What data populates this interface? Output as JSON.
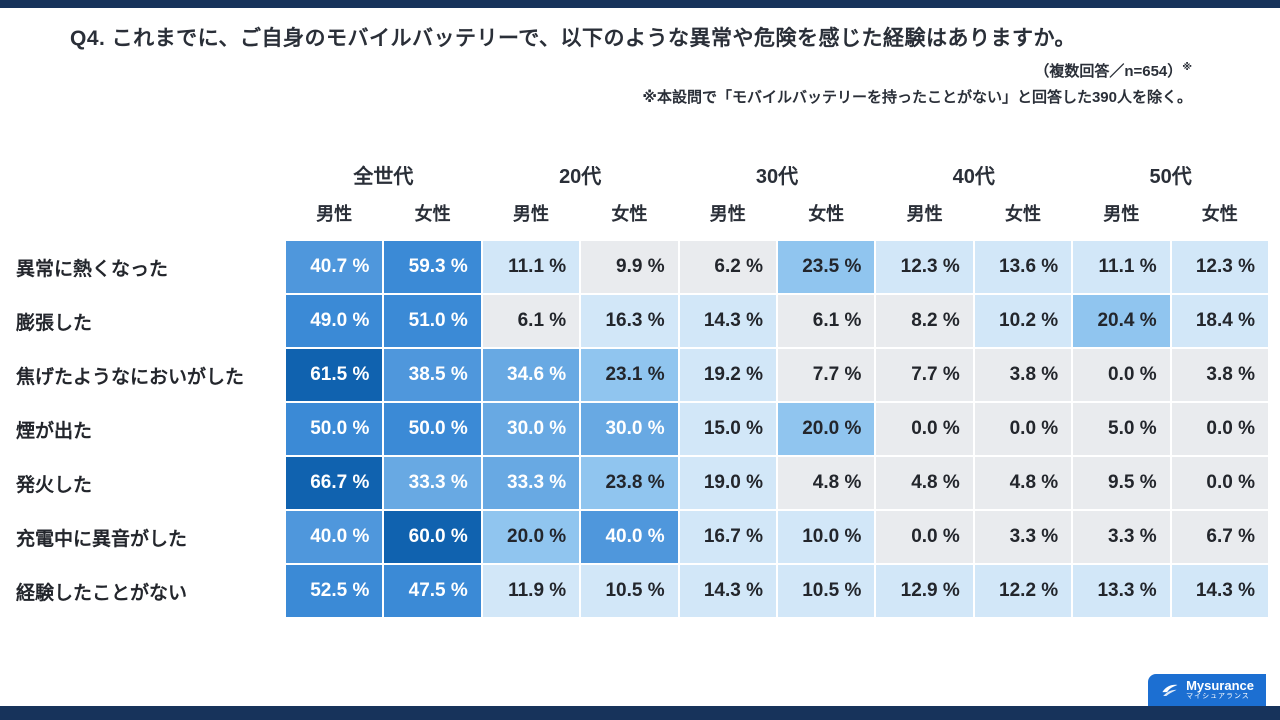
{
  "header": {
    "title": "Q4. これまでに、ご自身のモバイルバッテリーで、以下のような異常や危険を感じた経験はありますか。",
    "note1": "（複数回答／n=654）",
    "note1_mark": "※",
    "note2": "※本設問で「モバイルバッテリーを持ったことがない」と回答した390人を除く。"
  },
  "chart_data": {
    "type": "heatmap",
    "title": "Q4. これまでに、ご自身のモバイルバッテリーで、以下のような異常や危険を感じた経験はありますか。",
    "sample_note": "複数回答／n=654（「モバイルバッテリーを持ったことがない」と回答した390人を除く）",
    "col_groups": [
      "全世代",
      "20代",
      "30代",
      "40代",
      "50代"
    ],
    "sub_columns": [
      "男性",
      "女性"
    ],
    "value_suffix": " %",
    "rows": [
      {
        "label": "異常に熱くなった",
        "values": [
          40.7,
          59.3,
          11.1,
          9.9,
          6.2,
          23.5,
          12.3,
          13.6,
          11.1,
          12.3
        ]
      },
      {
        "label": "膨張した",
        "values": [
          49.0,
          51.0,
          6.1,
          16.3,
          14.3,
          6.1,
          8.2,
          10.2,
          20.4,
          18.4
        ]
      },
      {
        "label": "焦げたようなにおいがした",
        "values": [
          61.5,
          38.5,
          34.6,
          23.1,
          19.2,
          7.7,
          7.7,
          3.8,
          0.0,
          3.8
        ]
      },
      {
        "label": "煙が出た",
        "values": [
          50.0,
          50.0,
          30.0,
          30.0,
          15.0,
          20.0,
          0.0,
          0.0,
          5.0,
          0.0
        ]
      },
      {
        "label": "発火した",
        "values": [
          66.7,
          33.3,
          33.3,
          23.8,
          19.0,
          4.8,
          4.8,
          4.8,
          9.5,
          0.0
        ]
      },
      {
        "label": "充電中に異音がした",
        "values": [
          40.0,
          60.0,
          20.0,
          40.0,
          16.7,
          10.0,
          0.0,
          3.3,
          3.3,
          6.7
        ]
      },
      {
        "label": "経験したことがない",
        "values": [
          52.5,
          47.5,
          11.9,
          10.5,
          14.3,
          10.5,
          12.9,
          12.2,
          13.3,
          14.3
        ]
      }
    ],
    "color_scale": [
      {
        "min": 60,
        "bg": "#1062af",
        "fg": "#ffffff"
      },
      {
        "min": 45,
        "bg": "#3b8ad6",
        "fg": "#ffffff"
      },
      {
        "min": 38,
        "bg": "#4f97dc",
        "fg": "#ffffff"
      },
      {
        "min": 30,
        "bg": "#68a9e3",
        "fg": "#ffffff"
      },
      {
        "min": 20,
        "bg": "#90c5ef",
        "fg": "#23262c"
      },
      {
        "min": 10,
        "bg": "#d2e7f8",
        "fg": "#23262c"
      },
      {
        "min": 0,
        "bg": "#e9ebee",
        "fg": "#23262c"
      }
    ]
  },
  "footer": {
    "logo_title": "Mysurance",
    "logo_subtitle": "マイシュアランス"
  }
}
